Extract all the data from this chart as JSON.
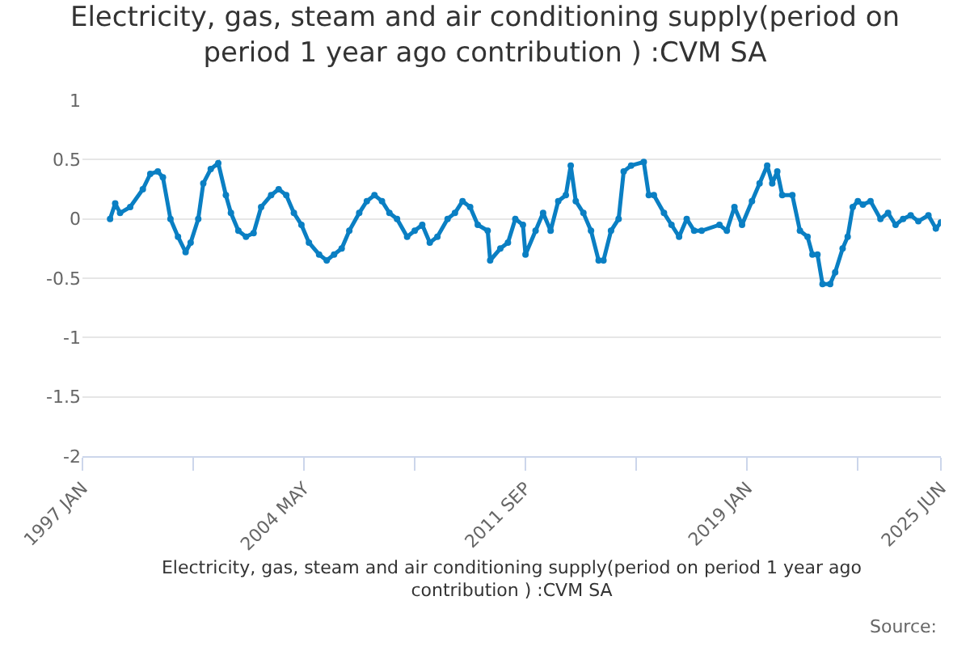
{
  "chart_data": {
    "type": "line",
    "title": "Electricity, gas, steam and air conditioning supply(period on period 1 year ago contribution ) :CVM SA",
    "xlabel": "Electricity, gas, steam and air conditioning supply(period on period 1 year ago contribution ) :CVM SA",
    "annotations": [
      "Source:"
    ],
    "x": [
      "1997-12",
      "1998-02",
      "1998-04",
      "1998-08",
      "1999-01",
      "1999-04",
      "1999-07",
      "1999-09",
      "1999-12",
      "2000-03",
      "2000-06",
      "2000-08",
      "2000-11",
      "2001-01",
      "2001-04",
      "2001-07",
      "2001-10",
      "2001-12",
      "2002-03",
      "2002-06",
      "2002-09",
      "2002-12",
      "2003-04",
      "2003-07",
      "2003-10",
      "2004-01",
      "2004-04",
      "2004-07",
      "2004-11",
      "2005-02",
      "2005-05",
      "2005-08",
      "2005-11",
      "2006-03",
      "2006-06",
      "2006-09",
      "2006-12",
      "2007-03",
      "2007-06",
      "2007-10",
      "2008-01",
      "2008-04",
      "2008-07",
      "2008-10",
      "2009-02",
      "2009-05",
      "2009-08",
      "2009-11",
      "2010-02",
      "2010-06",
      "2010-07",
      "2010-11",
      "2011-02",
      "2011-05",
      "2011-08",
      "2011-09",
      "2012-01",
      "2012-04",
      "2012-07",
      "2012-10",
      "2013-01",
      "2013-03",
      "2013-05",
      "2013-08",
      "2013-11",
      "2014-02",
      "2014-04",
      "2014-07",
      "2014-10",
      "2014-12",
      "2015-03",
      "2015-08",
      "2015-10",
      "2015-12",
      "2016-04",
      "2016-07",
      "2016-10",
      "2017-01",
      "2017-04",
      "2017-07",
      "2018-02",
      "2018-05",
      "2018-08",
      "2018-11",
      "2019-03",
      "2019-06",
      "2019-09",
      "2019-11",
      "2020-01",
      "2020-03",
      "2020-07",
      "2020-10",
      "2021-01",
      "2021-03",
      "2021-05",
      "2021-07",
      "2021-10",
      "2021-12",
      "2022-03",
      "2022-05",
      "2022-07",
      "2022-09",
      "2022-11",
      "2023-02",
      "2023-06",
      "2023-09",
      "2023-12",
      "2024-03",
      "2024-06",
      "2024-09",
      "2025-01",
      "2025-04",
      "2025-06"
    ],
    "series": [
      {
        "color": "#0a7fc3",
        "values": [
          0.0,
          0.13,
          0.05,
          0.1,
          0.25,
          0.38,
          0.4,
          0.35,
          0.0,
          -0.15,
          -0.28,
          -0.2,
          0.0,
          0.3,
          0.42,
          0.47,
          0.2,
          0.05,
          -0.1,
          -0.15,
          -0.12,
          0.1,
          0.2,
          0.25,
          0.2,
          0.05,
          -0.05,
          -0.2,
          -0.3,
          -0.35,
          -0.3,
          -0.25,
          -0.1,
          0.05,
          0.15,
          0.2,
          0.15,
          0.05,
          0.0,
          -0.15,
          -0.1,
          -0.05,
          -0.2,
          -0.15,
          0.0,
          0.05,
          0.15,
          0.1,
          -0.05,
          -0.1,
          -0.35,
          -0.25,
          -0.2,
          0.0,
          -0.05,
          -0.3,
          -0.1,
          0.05,
          -0.1,
          0.15,
          0.2,
          0.45,
          0.15,
          0.05,
          -0.1,
          -0.35,
          -0.35,
          -0.1,
          0.0,
          0.4,
          0.45,
          0.48,
          0.2,
          0.2,
          0.05,
          -0.05,
          -0.15,
          0.0,
          -0.1,
          -0.1,
          -0.05,
          -0.1,
          0.1,
          -0.05,
          0.15,
          0.3,
          0.45,
          0.3,
          0.4,
          0.2,
          0.2,
          -0.1,
          -0.15,
          -0.3,
          -0.3,
          -0.55,
          -0.55,
          -0.45,
          -0.25,
          -0.15,
          0.1,
          0.15,
          0.12,
          0.15,
          0.0,
          0.05,
          -0.05,
          0.0,
          0.03,
          -0.02,
          0.03,
          -0.08,
          -0.03
        ]
      }
    ],
    "xlim": [
      "1997-01",
      "2025-06"
    ],
    "xticks": [
      {
        "value": "1997-01",
        "label": "1997 JAN"
      },
      {
        "value": "2000-09",
        "label": null
      },
      {
        "value": "2004-05",
        "label": "2004 MAY"
      },
      {
        "value": "2008-01",
        "label": null
      },
      {
        "value": "2011-09",
        "label": "2011 SEP"
      },
      {
        "value": "2015-05",
        "label": null
      },
      {
        "value": "2019-01",
        "label": "2019 JAN"
      },
      {
        "value": "2022-09",
        "label": null
      },
      {
        "value": "2025-06",
        "label": "2025 JUN"
      }
    ],
    "ylim": [
      -2,
      1
    ],
    "yticks": [
      1,
      0.5,
      0,
      -0.5,
      -1,
      -1.5,
      -2
    ],
    "grid": "y",
    "marker": "circle",
    "line_style": "solid",
    "legend": false
  }
}
